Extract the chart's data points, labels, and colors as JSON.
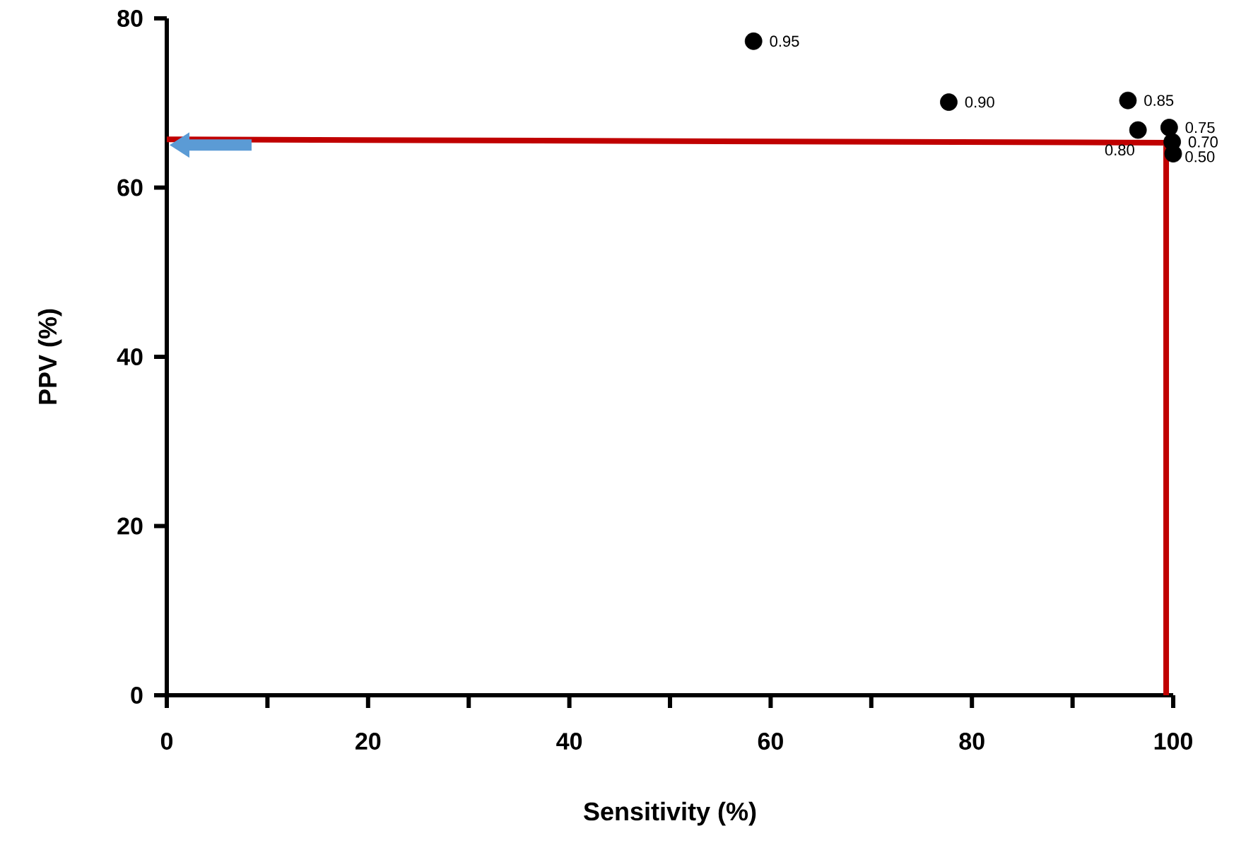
{
  "chart_data": {
    "type": "scatter",
    "xlabel": "Sensitivity (%)",
    "ylabel": "PPV (%)",
    "xlim": [
      0,
      100
    ],
    "ylim": [
      0,
      80
    ],
    "xticks": [
      0,
      {
        "value": 10,
        "label": null
      },
      20,
      {
        "value": 30,
        "label": null
      },
      40,
      {
        "value": 50,
        "label": null
      },
      60,
      {
        "value": 70,
        "label": null
      },
      80,
      {
        "value": 90,
        "label": null
      },
      100
    ],
    "yticks": [
      0,
      20,
      40,
      60,
      80
    ],
    "annotations": [
      {
        "text": "0.95",
        "x": 58.3,
        "y": 77.3
      },
      {
        "text": "0.90",
        "x": 77.7,
        "y": 70.1
      },
      {
        "text": "0.85",
        "x": 95.5,
        "y": 70.3
      },
      {
        "text": "0.80",
        "x": 96.5,
        "y": 66.8
      },
      {
        "text": "0.75",
        "x": 99.6,
        "y": 67.1
      },
      {
        "text": "0.70",
        "x": 99.9,
        "y": 65.4
      },
      {
        "text": "0.50",
        "x": 100,
        "y": 64.0
      }
    ],
    "series": [
      {
        "color": "#000000",
        "marker": "circle",
        "x": [
          58.3,
          77.7,
          95.5,
          96.5,
          99.6,
          99.9,
          100
        ],
        "values": [
          77.3,
          70.1,
          70.3,
          66.8,
          67.1,
          65.4,
          64.0
        ]
      },
      {
        "type": "line",
        "color": "#c00000",
        "marker": "none",
        "line_style": "solid",
        "x": [
          0,
          99.3,
          99.3
        ],
        "values": [
          65.7,
          65.3,
          0
        ]
      }
    ]
  }
}
